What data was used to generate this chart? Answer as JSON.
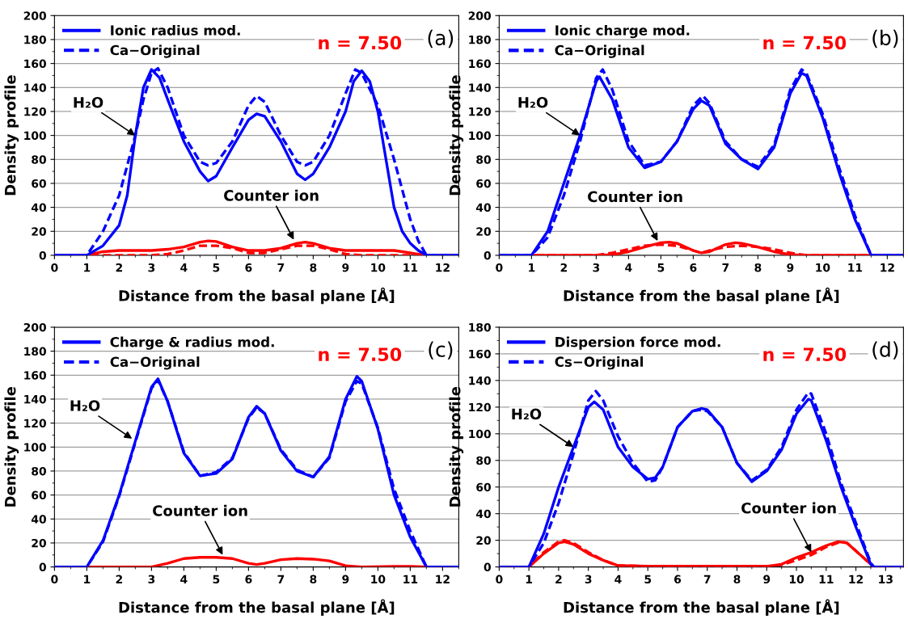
{
  "chart_data": [
    {
      "type": "line",
      "xlabel": "Distance from the basal plane [Å]",
      "ylabel": "Density profile",
      "xlim": [
        0,
        12.5
      ],
      "xticks": [
        0,
        1,
        2,
        3,
        4,
        5,
        6,
        7,
        8,
        9,
        10,
        11,
        12
      ],
      "ylim": [
        0,
        200
      ],
      "yticks": [
        0,
        20,
        40,
        60,
        80,
        100,
        120,
        140,
        160,
        180,
        200
      ],
      "grid": "y",
      "legend": "top left",
      "annotations": [
        {
          "text": "H₂O",
          "x": 2.5,
          "y": 100
        },
        {
          "text": "Counter ion",
          "x": 7.4,
          "y": 13
        },
        "n = 7.50",
        "(a)"
      ],
      "series": [
        {
          "name": "Ionic radius mod.",
          "color": "#0000ff",
          "line_style": "solid",
          "x": [
            0,
            0.5,
            1,
            1.5,
            2,
            2.25,
            2.5,
            2.75,
            3,
            3.25,
            3.5,
            4,
            4.5,
            4.75,
            5,
            5.5,
            6,
            6.25,
            6.5,
            7,
            7.5,
            7.75,
            8,
            8.5,
            9,
            9.25,
            9.5,
            9.75,
            10,
            10.25,
            10.5,
            10.75,
            11,
            11.25,
            11.5,
            12,
            12.5
          ],
          "values": [
            0,
            0,
            0,
            8,
            25,
            50,
            100,
            140,
            155,
            148,
            130,
            95,
            70,
            62,
            66,
            90,
            113,
            118,
            116,
            95,
            68,
            63,
            68,
            90,
            120,
            145,
            154,
            145,
            120,
            80,
            40,
            20,
            10,
            4,
            0,
            0,
            0
          ]
        },
        {
          "name": "Ca−Original",
          "color": "#0000ff",
          "line_style": "dashed",
          "x": [
            0,
            1,
            1.5,
            2,
            2.5,
            2.75,
            3,
            3.2,
            3.5,
            4,
            4.5,
            4.75,
            5,
            5.5,
            6,
            6.25,
            6.5,
            7,
            7.5,
            7.75,
            8,
            8.5,
            9,
            9.3,
            9.5,
            10,
            10.5,
            11,
            11.25,
            11.5,
            12.5
          ],
          "values": [
            0,
            0,
            20,
            50,
            100,
            130,
            152,
            156,
            140,
            100,
            78,
            75,
            77,
            95,
            125,
            133,
            128,
            100,
            78,
            75,
            78,
            100,
            135,
            155,
            152,
            125,
            80,
            30,
            12,
            0,
            0
          ]
        },
        {
          "color": "#ff0000",
          "line_style": "solid",
          "x": [
            0,
            1,
            1.5,
            2,
            3,
            3.5,
            4,
            4.5,
            4.75,
            5,
            5.5,
            6,
            6.5,
            7,
            7.5,
            7.75,
            8,
            8.5,
            9,
            10,
            10.5,
            11,
            11.5,
            12.5
          ],
          "values": [
            0,
            0,
            3,
            4,
            4,
            5,
            7,
            11,
            12,
            11.5,
            7,
            4,
            4,
            6,
            10,
            11,
            10,
            6,
            4,
            4,
            4,
            2,
            0,
            0
          ]
        },
        {
          "color": "#ff0000",
          "line_style": "dashed",
          "x": [
            0,
            1,
            2,
            3,
            3.5,
            4,
            4.5,
            5,
            5.5,
            6,
            6.5,
            7,
            7.5,
            8,
            8.5,
            9,
            9.5,
            12.5
          ],
          "values": [
            0,
            0,
            0,
            0,
            1,
            4,
            8,
            8,
            6,
            2,
            2,
            5,
            8,
            8,
            5,
            1,
            0,
            0
          ]
        }
      ]
    },
    {
      "type": "line",
      "xlabel": "Distance from the basal plane [Å]",
      "ylabel": "Density profile",
      "xlim": [
        0,
        12.5
      ],
      "xticks": [
        0,
        1,
        2,
        3,
        4,
        5,
        6,
        7,
        8,
        9,
        10,
        11,
        12
      ],
      "ylim": [
        0,
        200
      ],
      "yticks": [
        0,
        20,
        40,
        60,
        80,
        100,
        120,
        140,
        160,
        180,
        200
      ],
      "grid": "y",
      "legend": "top left",
      "annotations": [
        {
          "text": "H₂O",
          "x": 2.5,
          "y": 100
        },
        {
          "text": "Counter ion",
          "x": 4.9,
          "y": 12
        },
        "n = 7.50",
        "(b)"
      ],
      "series": [
        {
          "name": "Ionic charge mod.",
          "color": "#0000ff",
          "line_style": "solid",
          "x": [
            0,
            1,
            1.5,
            2,
            2.5,
            3,
            3.1,
            3.5,
            4,
            4.5,
            5,
            5.5,
            6,
            6.25,
            6.5,
            7,
            7.5,
            8,
            8.5,
            9,
            9.35,
            9.5,
            10,
            10.5,
            11,
            11.5,
            12.5
          ],
          "values": [
            0,
            0,
            20,
            60,
            100,
            145,
            149,
            130,
            90,
            73,
            78,
            95,
            122,
            129,
            125,
            93,
            80,
            72,
            90,
            135,
            152,
            150,
            115,
            70,
            30,
            0,
            0
          ]
        },
        {
          "name": "Ca−Original",
          "color": "#0000ff",
          "line_style": "dashed",
          "x": [
            0,
            1,
            1.5,
            2,
            2.5,
            3,
            3.2,
            3.5,
            4,
            4.5,
            5,
            5.5,
            6,
            6.3,
            6.5,
            7,
            7.5,
            8,
            8.5,
            9,
            9.35,
            9.5,
            10,
            10.5,
            11,
            11.5,
            12.5
          ],
          "values": [
            0,
            0,
            15,
            50,
            95,
            148,
            155,
            138,
            95,
            75,
            78,
            95,
            125,
            133,
            127,
            95,
            80,
            74,
            92,
            138,
            155,
            152,
            118,
            74,
            33,
            0,
            0
          ]
        },
        {
          "color": "#ff0000",
          "line_style": "solid",
          "x": [
            0,
            3,
            3.5,
            4,
            4.5,
            5,
            5.25,
            5.5,
            6,
            6.25,
            6.5,
            7,
            7.3,
            7.5,
            8,
            8.5,
            9,
            9.5,
            12.5
          ],
          "values": [
            0,
            0,
            0.5,
            3,
            7,
            10.5,
            11,
            10,
            4,
            2,
            3,
            9,
            10.5,
            10,
            7,
            3,
            0.5,
            0,
            0
          ]
        },
        {
          "color": "#ff0000",
          "line_style": "dashed",
          "x": [
            0,
            3,
            3.5,
            4,
            4.5,
            5,
            5.5,
            6,
            6.25,
            6.5,
            7,
            7.5,
            8,
            8.5,
            9,
            9.5,
            12.5
          ],
          "values": [
            0,
            0,
            2,
            5,
            8,
            9,
            8,
            4,
            2,
            4,
            7,
            8,
            7,
            5,
            2,
            0,
            0
          ]
        }
      ]
    },
    {
      "type": "line",
      "xlabel": "Distance from the basal plane [Å]",
      "ylabel": "Density profile",
      "xlim": [
        0,
        12.5
      ],
      "xticks": [
        0,
        1,
        2,
        3,
        4,
        5,
        6,
        7,
        8,
        9,
        10,
        11,
        12
      ],
      "ylim": [
        0,
        200
      ],
      "yticks": [
        0,
        20,
        40,
        60,
        80,
        100,
        120,
        140,
        160,
        180,
        200
      ],
      "grid": "y",
      "legend": "top left",
      "annotations": [
        {
          "text": "H₂O",
          "x": 2.4,
          "y": 107
        },
        {
          "text": "Counter ion",
          "x": 5.2,
          "y": 10
        },
        "n = 7.50",
        "(c)"
      ],
      "series": [
        {
          "name": "Charge & radius mod.",
          "color": "#0000ff",
          "line_style": "solid",
          "x": [
            0,
            1,
            1.5,
            2,
            2.5,
            3,
            3.2,
            3.5,
            4,
            4.5,
            5,
            5.5,
            6,
            6.25,
            6.5,
            7,
            7.5,
            8,
            8.5,
            9,
            9.35,
            9.5,
            10,
            10.5,
            11,
            11.5,
            12.5
          ],
          "values": [
            0,
            0,
            22,
            60,
            105,
            150,
            157,
            138,
            95,
            76,
            78,
            90,
            125,
            134,
            128,
            97,
            80,
            75,
            92,
            140,
            159,
            155,
            115,
            60,
            25,
            0,
            0
          ]
        },
        {
          "name": "Ca−Original",
          "color": "#0000ff",
          "line_style": "dashed",
          "x": [
            0,
            1,
            1.5,
            2,
            2.5,
            3,
            3.2,
            3.5,
            4,
            4.5,
            5,
            5.5,
            6,
            6.25,
            6.5,
            7,
            7.5,
            8,
            8.5,
            9,
            9.35,
            9.5,
            10,
            10.5,
            11,
            11.5,
            12.5
          ],
          "values": [
            0,
            0,
            21,
            59,
            104,
            149,
            156,
            138,
            96,
            76,
            79,
            91,
            124,
            133,
            128,
            98,
            81,
            75,
            91,
            138,
            155,
            153,
            116,
            65,
            30,
            0,
            0
          ]
        },
        {
          "color": "#ff0000",
          "line_style": "solid",
          "x": [
            0,
            3,
            3.5,
            4,
            4.5,
            5,
            5.5,
            6,
            6.25,
            6.5,
            7,
            7.5,
            8,
            8.5,
            9,
            9.5,
            10.5,
            11,
            11.5,
            12.5
          ],
          "values": [
            0,
            0,
            3,
            7,
            8,
            8,
            7,
            3,
            2,
            3,
            6,
            7,
            6.5,
            5,
            1,
            0,
            0.5,
            0.5,
            0,
            0
          ]
        }
      ]
    },
    {
      "type": "line",
      "xlabel": "Distance from the basal plane [Å]",
      "ylabel": "Density profile",
      "xlim": [
        0,
        13.6
      ],
      "xticks": [
        0,
        1,
        2,
        3,
        4,
        5,
        6,
        7,
        8,
        9,
        10,
        11,
        12,
        13
      ],
      "ylim": [
        0,
        180
      ],
      "yticks": [
        0,
        20,
        40,
        60,
        80,
        100,
        120,
        140,
        160,
        180
      ],
      "grid": "y",
      "legend": "top left",
      "annotations": [
        {
          "text": "H₂O",
          "x": 2.5,
          "y": 90
        },
        {
          "text": "Counter ion",
          "x": 10.5,
          "y": 11
        },
        "n = 7.50",
        "(d)"
      ],
      "series": [
        {
          "name": "Dispersion force mod.",
          "color": "#0000ff",
          "line_style": "solid",
          "x": [
            0,
            1,
            1.5,
            2,
            2.5,
            3,
            3.2,
            3.5,
            4,
            4.5,
            5,
            5.25,
            5.5,
            6,
            6.5,
            6.8,
            7,
            7.5,
            8,
            8.5,
            9,
            9.5,
            10,
            10.4,
            10.5,
            11,
            11.5,
            12,
            12.5,
            12.6,
            13.6
          ],
          "values": [
            0,
            0,
            25,
            60,
            90,
            120,
            124,
            118,
            90,
            75,
            66,
            67,
            75,
            105,
            117,
            119,
            118,
            105,
            78,
            64,
            72,
            88,
            115,
            126,
            125,
            95,
            60,
            30,
            2,
            0,
            0
          ]
        },
        {
          "name": "Cs−Original",
          "color": "#0000ff",
          "line_style": "dashed",
          "x": [
            0,
            1,
            1.5,
            2,
            2.5,
            3,
            3.25,
            3.5,
            4,
            4.5,
            5,
            5.25,
            5.5,
            6,
            6.5,
            6.8,
            7,
            7.5,
            8,
            8.5,
            9,
            9.5,
            10,
            10.4,
            10.5,
            11,
            11.5,
            12,
            12.5,
            12.6,
            13.6
          ],
          "values": [
            0,
            0,
            18,
            48,
            85,
            125,
            132,
            125,
            98,
            78,
            64,
            65,
            75,
            105,
            117,
            118,
            117,
            105,
            78,
            65,
            73,
            90,
            118,
            131,
            130,
            100,
            63,
            33,
            3,
            0,
            0
          ]
        },
        {
          "color": "#ff0000",
          "line_style": "solid",
          "x": [
            0,
            1,
            1.5,
            2,
            2.2,
            2.5,
            3,
            3.5,
            4,
            5,
            6,
            7,
            8,
            9,
            9.5,
            10,
            10.5,
            11,
            11.4,
            11.7,
            12,
            12.5,
            12.6,
            13.6
          ],
          "values": [
            0,
            0,
            10,
            18,
            19,
            17,
            10,
            5,
            1,
            0.5,
            0.5,
            0.5,
            0.5,
            0.5,
            2,
            7,
            11,
            16,
            19,
            18,
            12,
            2,
            0,
            0
          ]
        },
        {
          "color": "#ff0000",
          "line_style": "dashed",
          "x": [
            0,
            1,
            1.5,
            2,
            2.2,
            2.5,
            3,
            3.5,
            4,
            5,
            9,
            9.5,
            10,
            10.5,
            11,
            11.5,
            11.7,
            12,
            12.5,
            12.6,
            13.6
          ],
          "values": [
            0,
            0,
            11,
            19,
            20,
            18,
            11,
            5,
            1,
            0.5,
            0.5,
            1.5,
            5,
            9,
            15,
            19,
            18,
            12,
            2,
            0,
            0
          ]
        }
      ]
    }
  ]
}
